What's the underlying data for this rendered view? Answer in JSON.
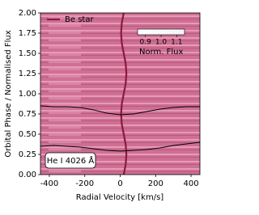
{
  "chart_data": {
    "type": "line",
    "xlabel": "Radial Velocity [km/s]",
    "ylabel": "Orbital Phase / Normalised Flux",
    "xlim": [
      -450,
      450
    ],
    "ylim": [
      0,
      2
    ],
    "xticks": [
      -400,
      -200,
      0,
      200,
      400
    ],
    "yticks": [
      {
        "value": 0,
        "label": "0.00"
      },
      0.25,
      {
        "value": 0.5,
        "label": "0.50"
      },
      0.75,
      {
        "value": 1,
        "label": "1.00"
      },
      1.25,
      {
        "value": 1.5,
        "label": "1.50"
      },
      1.75,
      {
        "value": 2,
        "label": "2.00"
      }
    ],
    "legend": "upper left",
    "series": [
      {
        "name": "Be star",
        "color": "#8b1a3f",
        "x": [
          20,
          31,
          35,
          31,
          20,
          9,
          5,
          9,
          20,
          31,
          35,
          31,
          20,
          9,
          5,
          9,
          20
        ],
        "values": [
          0,
          0.125,
          0.25,
          0.375,
          0.5,
          0.625,
          0.75,
          0.875,
          1,
          1.125,
          1.25,
          1.375,
          1.5,
          1.625,
          1.75,
          1.875,
          2
        ]
      },
      {
        "color": "#000000",
        "x": [
          -450,
          -375,
          -300,
          -225,
          -150,
          -75,
          0,
          75,
          150,
          225,
          300,
          375,
          450
        ],
        "values": [
          0.85,
          0.84,
          0.84,
          0.83,
          0.8,
          0.76,
          0.74,
          0.75,
          0.78,
          0.81,
          0.83,
          0.84,
          0.84
        ]
      },
      {
        "color": "#000000",
        "x": [
          -450,
          -375,
          -300,
          -225,
          -150,
          -75,
          0,
          75,
          150,
          225,
          300,
          375,
          450
        ],
        "values": [
          0.35,
          0.36,
          0.35,
          0.34,
          0.32,
          0.3,
          0.29,
          0.3,
          0.31,
          0.33,
          0.36,
          0.38,
          0.4
        ]
      }
    ],
    "annotation": "He I 4026 Å",
    "colorbar": {
      "label": "Norm. Flux",
      "lim": [
        0.85,
        1.15
      ],
      "ticks": [
        0.9,
        {
          "value": 1.0,
          "label": "1.0"
        },
        1.1
      ]
    }
  }
}
